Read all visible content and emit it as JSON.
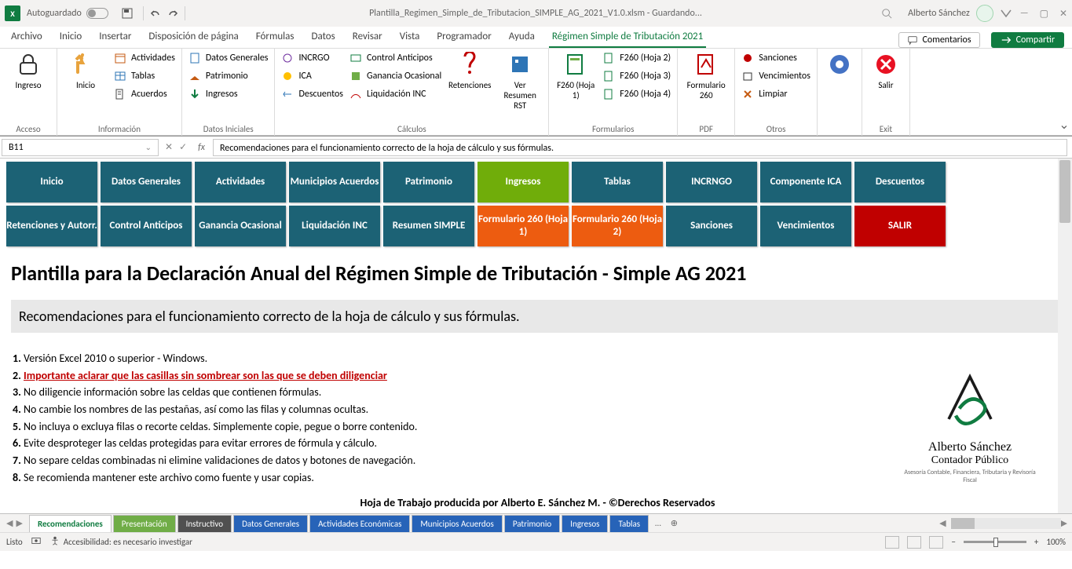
{
  "titlebar": {
    "autoguardado": "Autoguardado",
    "file": "Plantilla_Regimen_Simple_de_Tributacion_SIMPLE_AG_2021_V1.0.xlsm - Guardando...",
    "user": "Alberto Sánchez"
  },
  "tabs": {
    "items": [
      "Archivo",
      "Inicio",
      "Insertar",
      "Disposición de página",
      "Fórmulas",
      "Datos",
      "Revisar",
      "Vista",
      "Programador",
      "Ayuda",
      "Régimen Simple de Tributación 2021"
    ],
    "active_index": 10,
    "comentarios": "Comentarios",
    "compartir": "Compartir"
  },
  "ribbon": {
    "acceso": {
      "ingreso": "Ingreso",
      "label": "Acceso"
    },
    "informacion": {
      "inicio": "Inicio",
      "actividades": "Actividades",
      "tablas": "Tablas",
      "acuerdos": "Acuerdos",
      "label": "Información"
    },
    "datos_iniciales": {
      "datos_generales": "Datos Generales",
      "patrimonio": "Patrimonio",
      "ingresos": "Ingresos",
      "label": "Datos Iniciales"
    },
    "calculos": {
      "incrgo": "INCRGO",
      "ica": "ICA",
      "descuentos": "Descuentos",
      "control_anticipos": "Control Anticipos",
      "ganancia_ocasional": "Ganancia Ocasional",
      "liquidacion_inc": "Liquidación INC",
      "retenciones": "Retenciones",
      "resumen": "Ver Resumen RST",
      "label": "Cálculos"
    },
    "formularios": {
      "f260h1": "F260 (Hoja 1)",
      "f260h2": "F260 (Hoja 2)",
      "f260h3": "F260 (Hoja 3)",
      "f260h4": "F260 (Hoja 4)",
      "label": "Formularios"
    },
    "pdf": {
      "formulario": "Formulario 260",
      "label": "PDF"
    },
    "otros": {
      "sanciones": "Sanciones",
      "vencimientos": "Vencimientos",
      "limpiar": "Limpiar",
      "label": "Otros"
    },
    "ayuda": {
      "label": ""
    },
    "exit": {
      "salir": "Salir",
      "label": "Exit"
    }
  },
  "fbar": {
    "cell": "B11",
    "formula": "Recomendaciones para el funcionamiento correcto de la hoja de cálculo y sus fórmulas."
  },
  "nav": {
    "colors": {
      "teal": "#1c6275",
      "lime": "#70ad0a",
      "orange": "#ed5c10",
      "red": "#c00000"
    },
    "row1": [
      {
        "label": "Inicio",
        "color": "teal"
      },
      {
        "label": "Datos Generales",
        "color": "teal"
      },
      {
        "label": "Actividades",
        "color": "teal"
      },
      {
        "label": "Municipios Acuerdos",
        "color": "teal"
      },
      {
        "label": "Patrimonio",
        "color": "teal"
      },
      {
        "label": "Ingresos",
        "color": "lime"
      },
      {
        "label": "Tablas",
        "color": "teal"
      },
      {
        "label": "INCRNGO",
        "color": "teal"
      },
      {
        "label": "Componente ICA",
        "color": "teal"
      },
      {
        "label": "Descuentos",
        "color": "teal"
      }
    ],
    "row2": [
      {
        "label": "Retenciones y Autorr.",
        "color": "teal"
      },
      {
        "label": "Control Anticipos",
        "color": "teal"
      },
      {
        "label": "Ganancia Ocasional",
        "color": "teal"
      },
      {
        "label": "Liquidación INC",
        "color": "teal"
      },
      {
        "label": "Resumen SIMPLE",
        "color": "teal"
      },
      {
        "label": "Formulario 260 (Hoja 1)",
        "color": "orange"
      },
      {
        "label": "Formulario 260 (Hoja 2)",
        "color": "orange"
      },
      {
        "label": "Sanciones",
        "color": "teal"
      },
      {
        "label": "Vencimientos",
        "color": "teal"
      },
      {
        "label": "SALIR",
        "color": "red"
      }
    ]
  },
  "sheet": {
    "title": "Plantilla para la Declaración Anual del Régimen Simple de Tributación - Simple AG 2021",
    "subtitle": "Recomendaciones para el funcionamiento correcto de la hoja de cálculo y sus fórmulas.",
    "recs": [
      "Versión Excel 2010 o superior - Windows.",
      "Importante aclarar que las casillas sin sombrear son las que se deben diligenciar",
      "No diligencie información sobre las celdas que contienen fórmulas.",
      "No cambie los nombres de las pestañas, así como las filas y columnas ocultas.",
      "No incluya o excluya filas o recorte celdas. Simplemente copie, pegue o borre contenido.",
      "Evite desproteger las celdas protegidas para evitar errores de fórmula y cálculo.",
      "No separe celdas combinadas ni elimine validaciones de datos y botones de navegación.",
      "Se recomienda mantener este archivo como fuente y usar copias."
    ],
    "footer": "Hoja de Trabajo producida por Alberto E. Sánchez M. - ©Derechos Reservados",
    "logo": {
      "name": "Alberto Sánchez",
      "role": "Contador Público",
      "tag": "Asesoría Contable, Financiera, Tributaria y Revisoría Fiscal"
    }
  },
  "worksheets": [
    {
      "label": "Recomendaciones",
      "cls": "ws-green-active"
    },
    {
      "label": "Presentación",
      "cls": "ws-green"
    },
    {
      "label": "Instructivo",
      "cls": "ws-gray"
    },
    {
      "label": "Datos Generales",
      "cls": "ws-blue"
    },
    {
      "label": "Actividades Económicas",
      "cls": "ws-blue"
    },
    {
      "label": "Municipios Acuerdos",
      "cls": "ws-blue"
    },
    {
      "label": "Patrimonio",
      "cls": "ws-blue"
    },
    {
      "label": "Ingresos",
      "cls": "ws-blue"
    },
    {
      "label": "Tablas",
      "cls": "ws-blue"
    }
  ],
  "statusbar": {
    "listo": "Listo",
    "accesibilidad": "Accesibilidad: es necesario investigar",
    "zoom": "100%"
  }
}
